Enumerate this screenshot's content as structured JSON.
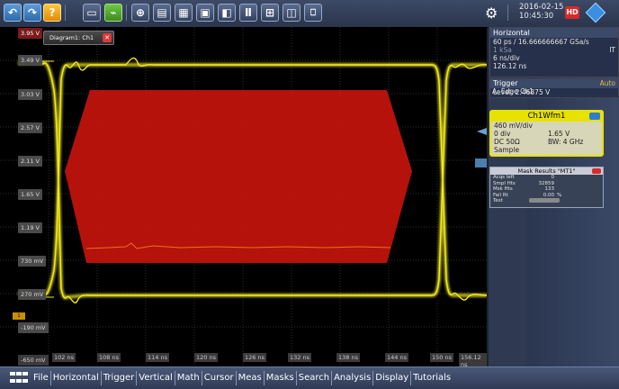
{
  "toolbar": {
    "buttons": [
      {
        "name": "undo-icon",
        "glyph": "↶"
      },
      {
        "name": "redo-icon",
        "glyph": "↷"
      },
      {
        "name": "help-icon",
        "glyph": "?"
      },
      {
        "name": "open-folder-icon",
        "glyph": "▭"
      },
      {
        "name": "autoset-icon",
        "glyph": "⌁"
      },
      {
        "name": "zoom-icon",
        "glyph": "⊕"
      },
      {
        "name": "histogram-icon",
        "glyph": "▤"
      },
      {
        "name": "mask-icon",
        "glyph": "▦"
      },
      {
        "name": "screenshot-icon",
        "glyph": "▣"
      },
      {
        "name": "record-icon",
        "glyph": "◧"
      },
      {
        "name": "annotation-icon",
        "glyph": "Ⅱ"
      },
      {
        "name": "fft-icon",
        "glyph": "⊞"
      },
      {
        "name": "touch-icon",
        "glyph": "◫"
      },
      {
        "name": "trash-icon",
        "glyph": "🗑"
      }
    ],
    "date": "2016-02-15",
    "time": "10:45:30",
    "hd_label": "HD"
  },
  "diagram": {
    "tab_label": "Diagram1: Ch1",
    "y_labels": [
      "3.95 V",
      "3.49 V",
      "3.03 V",
      "2.57 V",
      "2.11 V",
      "1.65 V",
      "1.19 V",
      "730 mV",
      "270 mV",
      "-190 mV",
      "-650 mV"
    ],
    "x_labels": [
      "102 ns",
      "108 ns",
      "114 ns",
      "120 ns",
      "126 ns",
      "132 ns",
      "138 ns",
      "144 ns",
      "150 ns",
      "156.12 ns"
    ]
  },
  "horizontal": {
    "title": "Horizontal",
    "lines": [
      "60 ps / 16.666666667 GSa/s",
      "1 kSa",
      "6 ns/div",
      "126.12 ns"
    ],
    "it_label": "IT"
  },
  "trigger": {
    "title": "Trigger",
    "mode": "Auto",
    "source_line": "A:    Edge  Ch1",
    "level_line": "Level: 2.46875 V"
  },
  "channel": {
    "title": "Ch1Wfm1",
    "scale": "460 mV/div",
    "offset_label": "0 div",
    "offset_value": "1.65 V",
    "coupling": "DC 50Ω",
    "bandwidth": "BW: 4 GHz",
    "acq_mode": "Sample"
  },
  "mask_results": {
    "title": "Mask Results \"MT1\"",
    "rows": [
      {
        "k": "Acqs left",
        "v": "0",
        "u": ""
      },
      {
        "k": "Smpl Hts",
        "v": "32859",
        "u": ""
      },
      {
        "k": "Msk Hts",
        "v": "133",
        "u": ""
      },
      {
        "k": "Fail Rt",
        "v": "0.00",
        "u": "%"
      }
    ],
    "test_label": "Test"
  },
  "menu": {
    "items": [
      "File",
      "Horizontal",
      "Trigger",
      "Vertical",
      "Math",
      "Cursor",
      "Meas",
      "Masks",
      "Search",
      "Analysis",
      "Display",
      "Tutorials"
    ]
  },
  "colors": {
    "trace": "#f2ea1e",
    "mask": "#c8140c",
    "accent": "#3a8fe0"
  }
}
